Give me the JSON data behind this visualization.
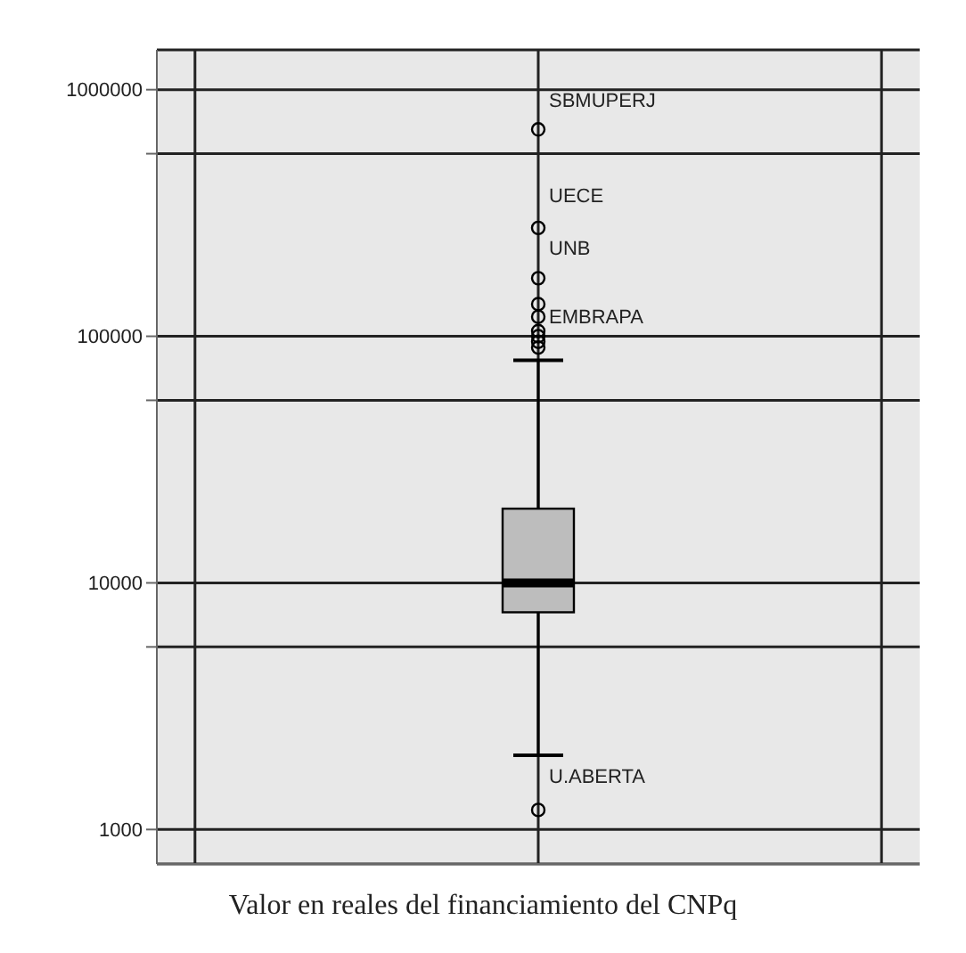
{
  "chart_data": {
    "type": "box",
    "xlabel": "Valor en reales del financiamiento del CNPq",
    "categories": [
      null
    ],
    "color": "#bdbdbd",
    "boxes": [
      {
        "low": 2000,
        "q1": 7600,
        "median": 10000,
        "q3": 20000,
        "high": 80000,
        "outliers": [
          1200,
          90000,
          95000,
          100000,
          105000,
          120000,
          135000,
          172000,
          275000,
          690000
        ]
      }
    ],
    "log": true,
    "ylim": [
      725,
      1450000
    ],
    "yticks": [
      1000,
      {
        "value": 5500,
        "label": null
      },
      10000,
      {
        "value": 55000,
        "label": null
      },
      100000,
      {
        "value": 550000,
        "label": null
      },
      1000000
    ],
    "grid": true,
    "tick_labels": "y",
    "marker": "circle",
    "annotations": [
      "SBMUPERJ",
      "UECE",
      "UNB",
      "EMBRAPA",
      "U.ABERTA"
    ]
  }
}
